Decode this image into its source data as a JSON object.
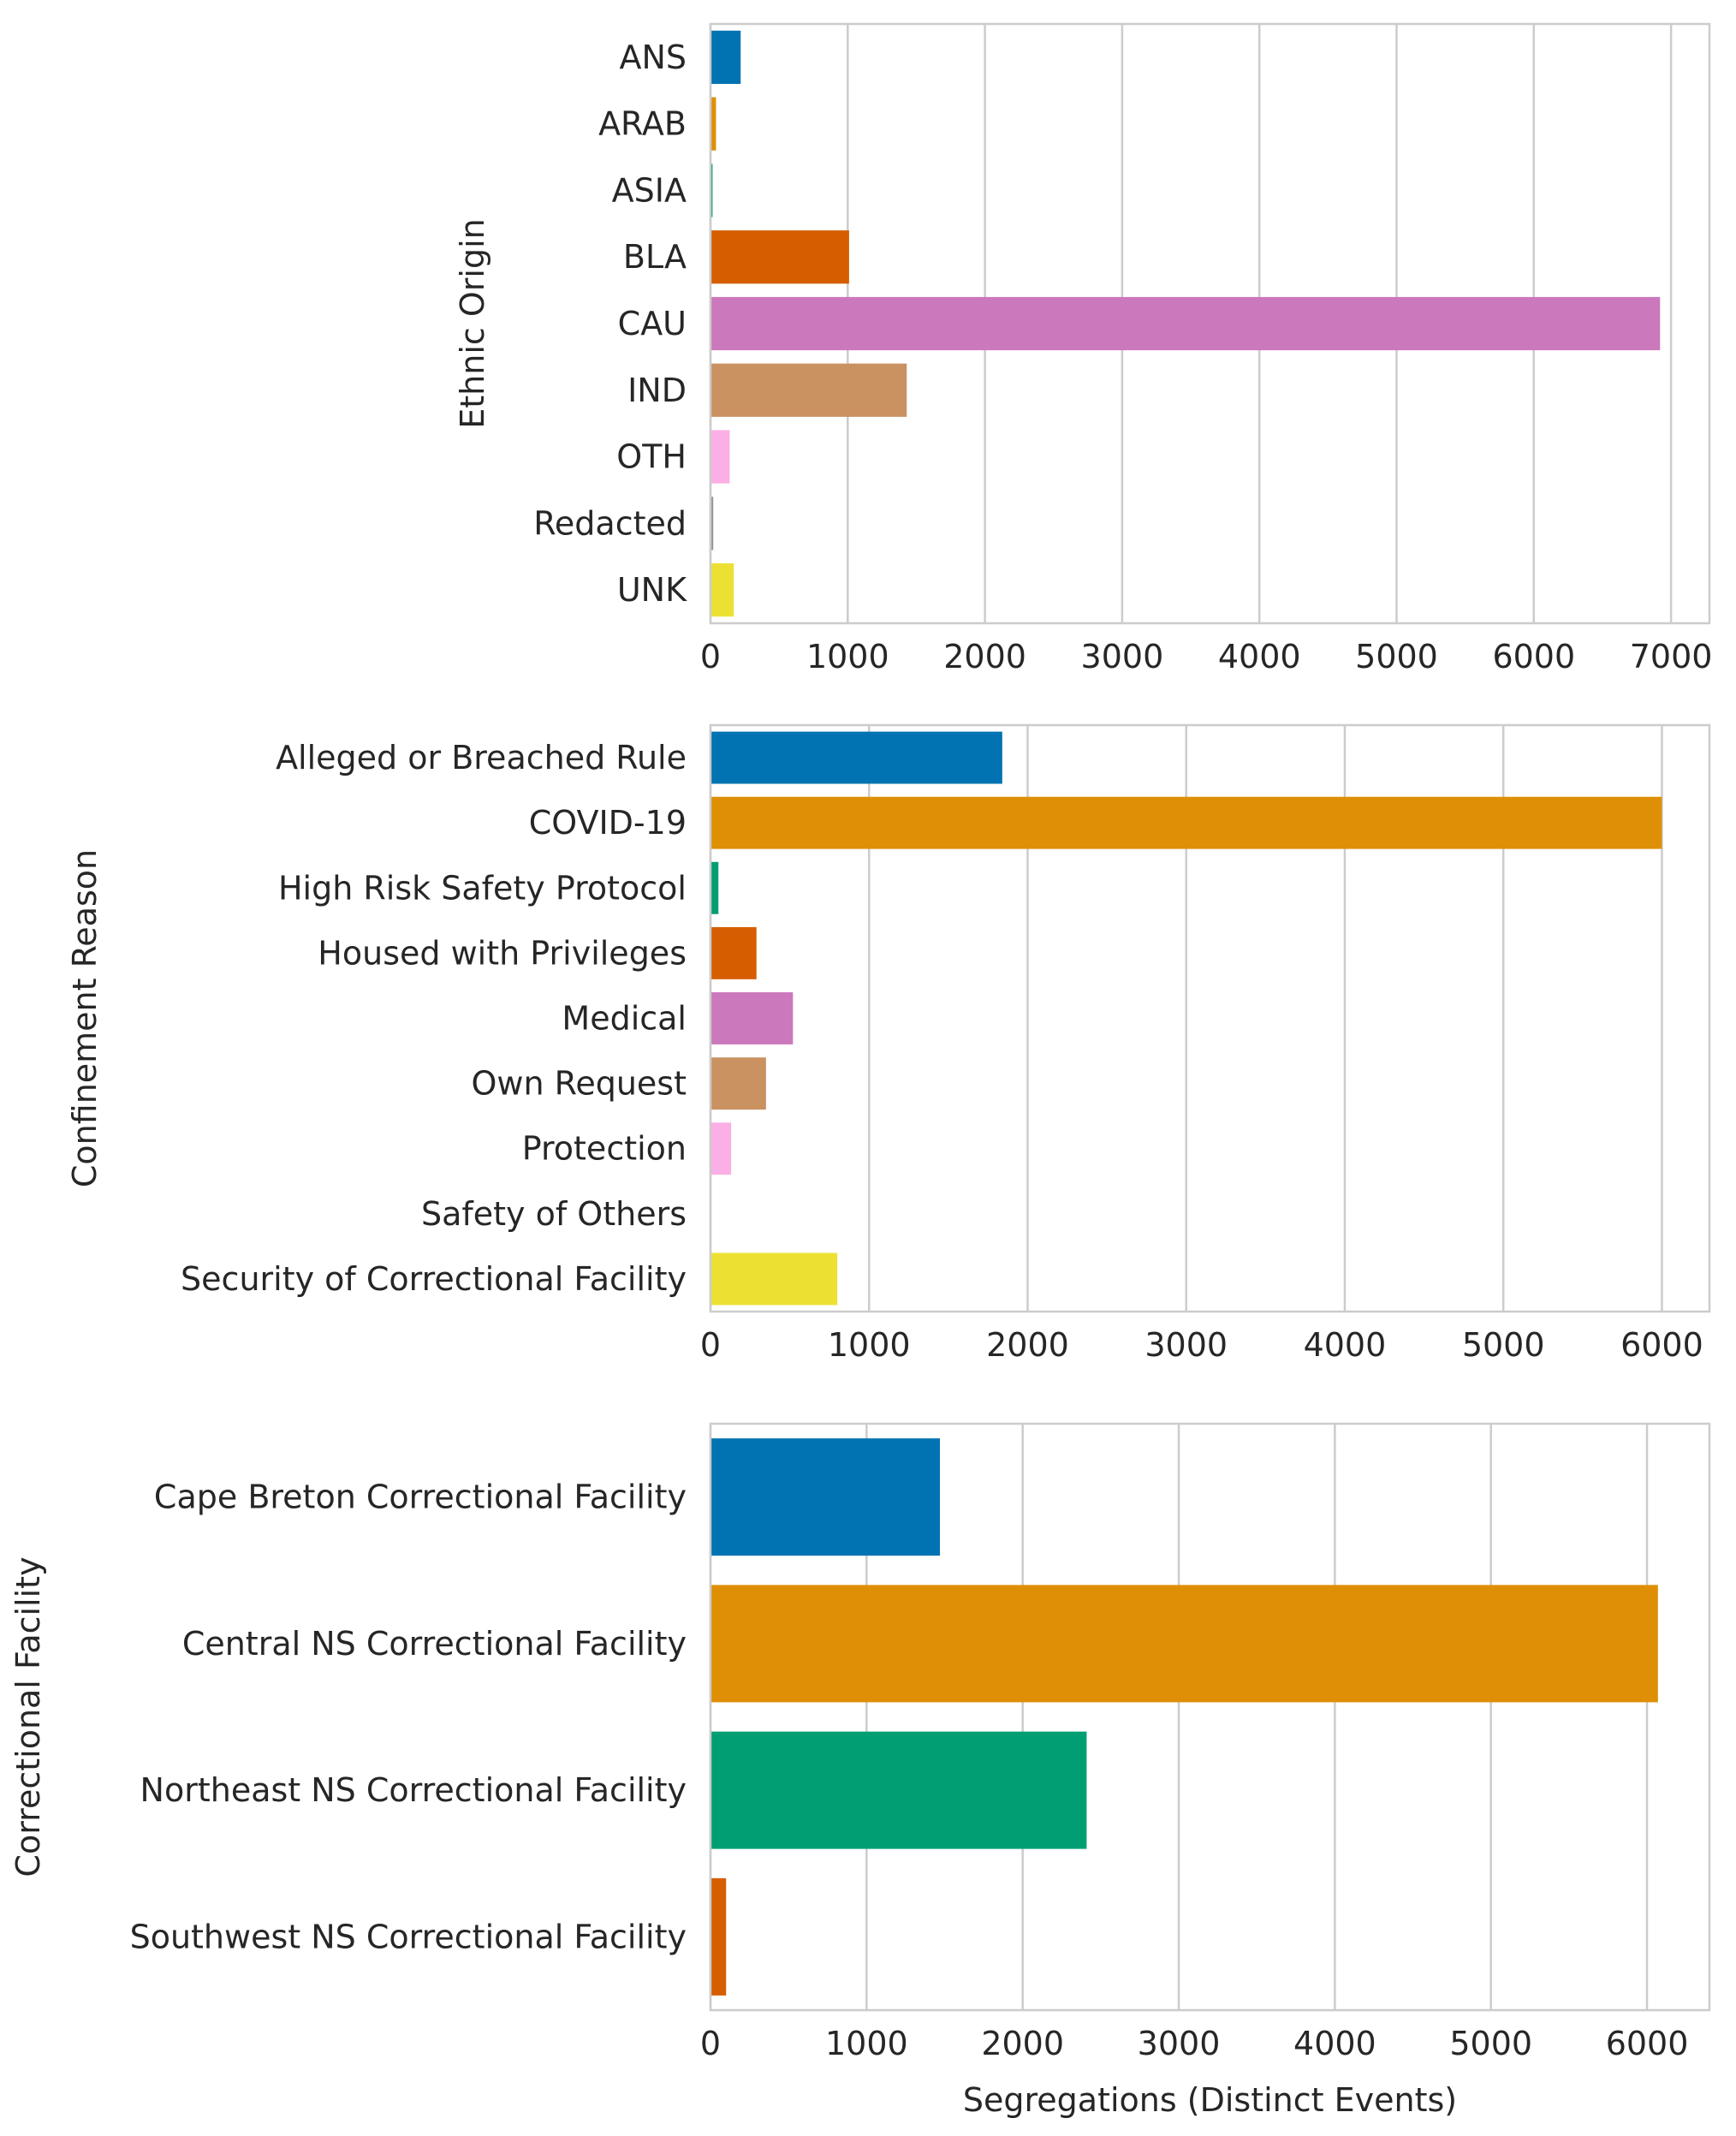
{
  "chart_data": [
    {
      "type": "bar",
      "orientation": "horizontal",
      "ylabel": "Ethnic Origin",
      "xlabel": "",
      "categories": [
        "ANS",
        "ARAB",
        "ASIA",
        "BLA",
        "CAU",
        "IND",
        "OTH",
        "Redacted",
        "UNK"
      ],
      "values": [
        220,
        40,
        15,
        1010,
        6920,
        1430,
        140,
        20,
        170
      ],
      "colors": [
        "#0173b2",
        "#de8f05",
        "#029e73",
        "#d55e00",
        "#cc78bc",
        "#ca9161",
        "#fbafe4",
        "#949494",
        "#ece133"
      ],
      "xticks": [
        "0",
        "1000",
        "2000",
        "3000",
        "4000",
        "5000",
        "6000",
        "7000"
      ],
      "xlim": [
        0,
        7280
      ],
      "grid": true
    },
    {
      "type": "bar",
      "orientation": "horizontal",
      "ylabel": "Confinement Reason",
      "xlabel": "",
      "categories": [
        "Alleged or Breached Rule",
        "COVID-19",
        "High Risk Safety Protocol",
        "Housed with Privileges",
        "Medical",
        "Own Request",
        "Protection",
        "Safety of Others",
        "Security of Correctional Facility"
      ],
      "values": [
        1840,
        6000,
        50,
        290,
        520,
        350,
        130,
        0,
        800
      ],
      "colors": [
        "#0173b2",
        "#de8f05",
        "#029e73",
        "#d55e00",
        "#cc78bc",
        "#ca9161",
        "#fbafe4",
        "#949494",
        "#ece133"
      ],
      "xticks": [
        "0",
        "1000",
        "2000",
        "3000",
        "4000",
        "5000",
        "6000"
      ],
      "xlim": [
        0,
        6300
      ],
      "grid": true
    },
    {
      "type": "bar",
      "orientation": "horizontal",
      "ylabel": "Correctional Facility",
      "xlabel": "Segregations (Distinct Events)",
      "categories": [
        "Cape Breton Correctional Facility",
        "Central NS Correctional Facility",
        "Northeast NS Correctional Facility",
        "Southwest NS Correctional Facility"
      ],
      "values": [
        1470,
        6070,
        2410,
        100
      ],
      "colors": [
        "#0173b2",
        "#de8f05",
        "#029e73",
        "#d55e00"
      ],
      "xticks": [
        "0",
        "1000",
        "2000",
        "3000",
        "4000",
        "5000",
        "6000"
      ],
      "xlim": [
        0,
        6400
      ],
      "grid": true
    }
  ]
}
